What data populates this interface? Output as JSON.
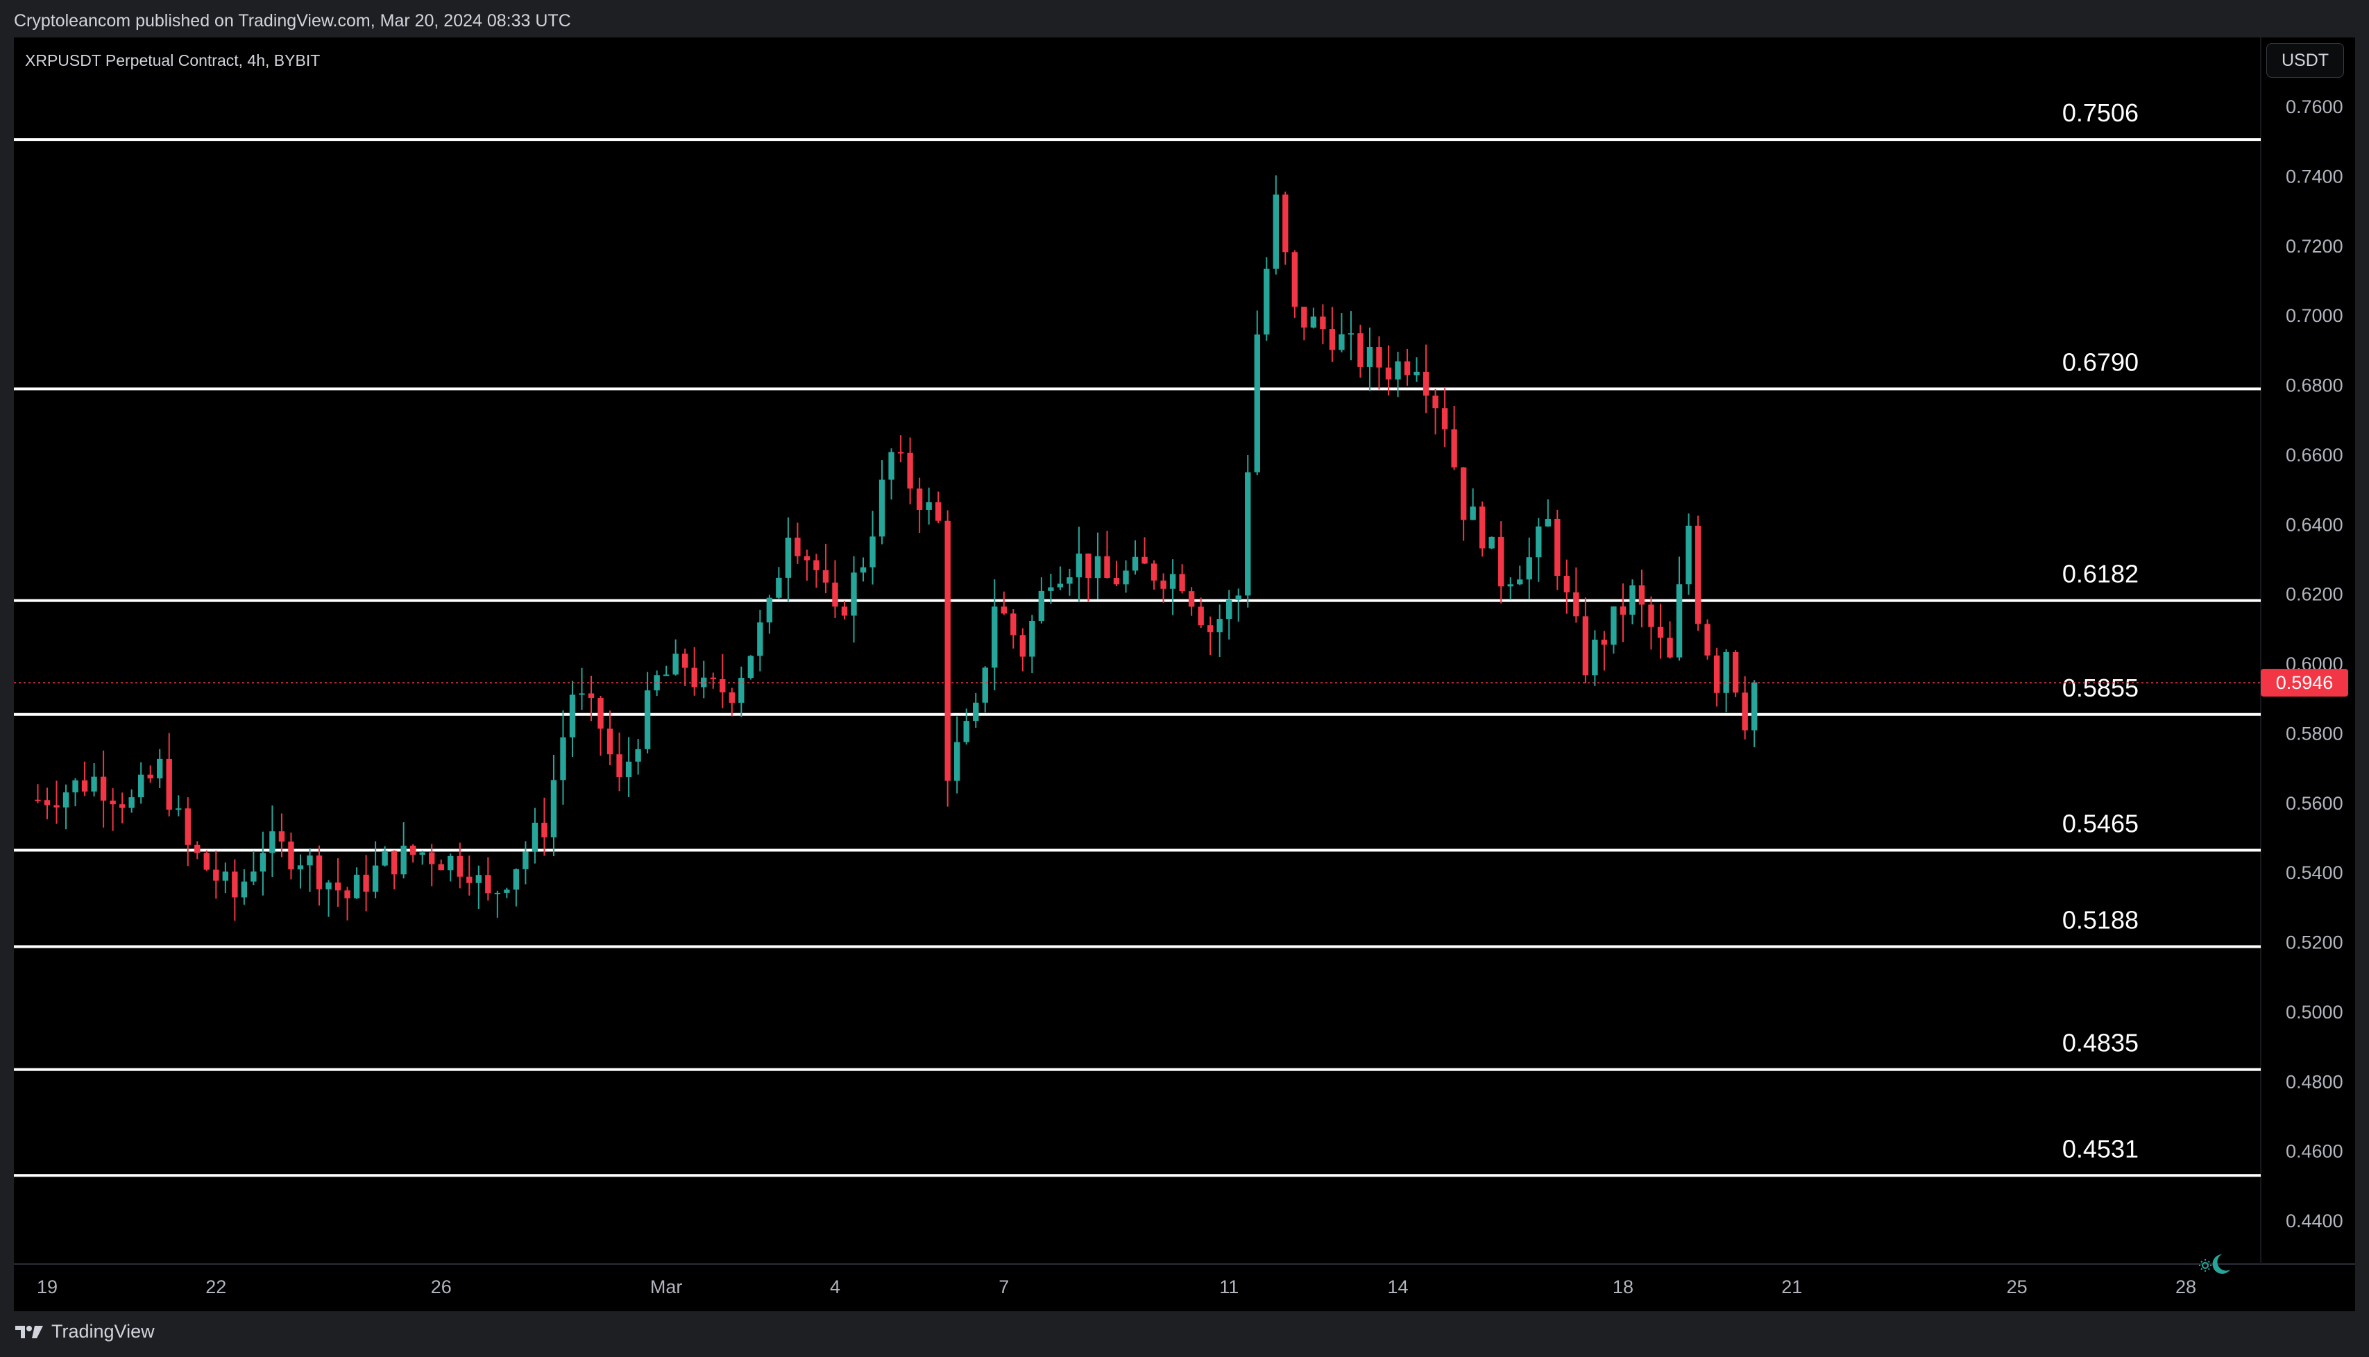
{
  "header": {
    "published_by": "Cryptoleancom published on TradingView.com, Mar 20, 2024 08:33 UTC"
  },
  "chart_header": {
    "symbol_info": "XRPUSDT Perpetual Contract, 4h, BYBIT",
    "currency_button": "USDT"
  },
  "footer": {
    "logo_text": "TradingView",
    "logo_icon": "tradingview-logo-icon"
  },
  "theme_icon": "sun-moon-icon",
  "colors": {
    "up": "#26a69a",
    "down": "#f23645",
    "level_line": "#ffffff",
    "axis_text": "#b2b5be",
    "background": "#000000",
    "price_tag": "#f23645"
  },
  "chart_data": {
    "type": "candlestick",
    "symbol": "XRPUSDT",
    "timeframe": "4h",
    "y_axis": {
      "ylim": [
        0.43,
        0.77
      ],
      "ticks": [
        "0.7600",
        "0.7400",
        "0.7200",
        "0.7000",
        "0.6800",
        "0.6600",
        "0.6400",
        "0.6200",
        "0.6000",
        "0.5800",
        "0.5600",
        "0.5400",
        "0.5200",
        "0.5000",
        "0.4800",
        "0.4600",
        "0.4400"
      ],
      "position": "right"
    },
    "x_axis": {
      "ticks": [
        {
          "label": "19",
          "date": "2024-02-19"
        },
        {
          "label": "22",
          "date": "2024-02-22"
        },
        {
          "label": "26",
          "date": "2024-02-26"
        },
        {
          "label": "Mar",
          "date": "2024-03-01"
        },
        {
          "label": "4",
          "date": "2024-03-04"
        },
        {
          "label": "7",
          "date": "2024-03-07"
        },
        {
          "label": "11",
          "date": "2024-03-11"
        },
        {
          "label": "14",
          "date": "2024-03-14"
        },
        {
          "label": "18",
          "date": "2024-03-18"
        },
        {
          "label": "21",
          "date": "2024-03-21"
        },
        {
          "label": "25",
          "date": "2024-03-25"
        },
        {
          "label": "28",
          "date": "2024-03-28"
        }
      ]
    },
    "current_price": {
      "value": 0.5946,
      "label": "0.5946"
    },
    "levels": [
      {
        "value": 0.7506,
        "label": "0.7506"
      },
      {
        "value": 0.679,
        "label": "0.6790"
      },
      {
        "value": 0.6182,
        "label": "0.6182"
      },
      {
        "value": 0.5855,
        "label": "0.5855"
      },
      {
        "value": 0.5465,
        "label": "0.5465"
      },
      {
        "value": 0.5188,
        "label": "0.5188"
      },
      {
        "value": 0.4835,
        "label": "0.4835"
      },
      {
        "value": 0.4531,
        "label": "0.4531"
      }
    ],
    "path": [
      [
        "2024-02-18T20:00",
        0.561
      ],
      [
        "2024-02-19T20:00",
        0.567
      ],
      [
        "2024-02-20T12:00",
        0.56
      ],
      [
        "2024-02-21T00:00",
        0.57
      ],
      [
        "2024-02-21T12:00",
        0.547
      ],
      [
        "2024-02-22T08:00",
        0.533
      ],
      [
        "2024-02-22T20:00",
        0.548
      ],
      [
        "2024-02-23T12:00",
        0.545
      ],
      [
        "2024-02-24T08:00",
        0.533
      ],
      [
        "2024-02-25T00:00",
        0.543
      ],
      [
        "2024-02-25T16:00",
        0.546
      ],
      [
        "2024-02-26T12:00",
        0.542
      ],
      [
        "2024-02-26T20:00",
        0.532
      ],
      [
        "2024-02-27T08:00",
        0.543
      ],
      [
        "2024-02-27T20:00",
        0.554
      ],
      [
        "2024-02-28T08:00",
        0.592
      ],
      [
        "2024-02-28T20:00",
        0.582
      ],
      [
        "2024-02-29T04:00",
        0.565
      ],
      [
        "2024-02-29T20:00",
        0.595
      ],
      [
        "2024-03-01T08:00",
        0.6
      ],
      [
        "2024-03-01T16:00",
        0.592
      ],
      [
        "2024-03-02T04:00",
        0.593
      ],
      [
        "2024-03-02T20:00",
        0.615
      ],
      [
        "2024-03-03T04:00",
        0.64
      ],
      [
        "2024-03-03T16:00",
        0.627
      ],
      [
        "2024-03-04T00:00",
        0.612
      ],
      [
        "2024-03-04T12:00",
        0.63
      ],
      [
        "2024-03-05T00:00",
        0.66
      ],
      [
        "2024-03-05T12:00",
        0.648
      ],
      [
        "2024-03-05T20:00",
        0.64
      ],
      [
        "2024-03-06T00:00",
        0.57
      ],
      [
        "2024-03-06T12:00",
        0.585
      ],
      [
        "2024-03-06T20:00",
        0.618
      ],
      [
        "2024-03-07T08:00",
        0.604
      ],
      [
        "2024-03-07T20:00",
        0.627
      ],
      [
        "2024-03-08T08:00",
        0.63
      ],
      [
        "2024-03-08T20:00",
        0.624
      ],
      [
        "2024-03-09T12:00",
        0.627
      ],
      [
        "2024-03-10T04:00",
        0.625
      ],
      [
        "2024-03-10T16:00",
        0.61
      ],
      [
        "2024-03-11T04:00",
        0.62
      ],
      [
        "2024-03-11T12:00",
        0.695
      ],
      [
        "2024-03-11T20:00",
        0.732
      ],
      [
        "2024-03-12T04:00",
        0.7
      ],
      [
        "2024-03-12T20:00",
        0.695
      ],
      [
        "2024-03-13T08:00",
        0.688
      ],
      [
        "2024-03-13T20:00",
        0.685
      ],
      [
        "2024-03-14T08:00",
        0.688
      ],
      [
        "2024-03-14T20:00",
        0.67
      ],
      [
        "2024-03-15T04:00",
        0.645
      ],
      [
        "2024-03-15T12:00",
        0.638
      ],
      [
        "2024-03-15T20:00",
        0.625
      ],
      [
        "2024-03-16T08:00",
        0.63
      ],
      [
        "2024-03-16T16:00",
        0.64
      ],
      [
        "2024-03-17T00:00",
        0.618
      ],
      [
        "2024-03-17T08:00",
        0.6
      ],
      [
        "2024-03-17T16:00",
        0.608
      ],
      [
        "2024-03-18T04:00",
        0.62
      ],
      [
        "2024-03-18T20:00",
        0.6
      ],
      [
        "2024-03-19T04:00",
        0.64
      ],
      [
        "2024-03-19T08:00",
        0.615
      ],
      [
        "2024-03-19T16:00",
        0.595
      ],
      [
        "2024-03-19T20:00",
        0.605
      ],
      [
        "2024-03-20T04:00",
        0.585
      ],
      [
        "2024-03-20T08:00",
        0.5946
      ]
    ]
  }
}
